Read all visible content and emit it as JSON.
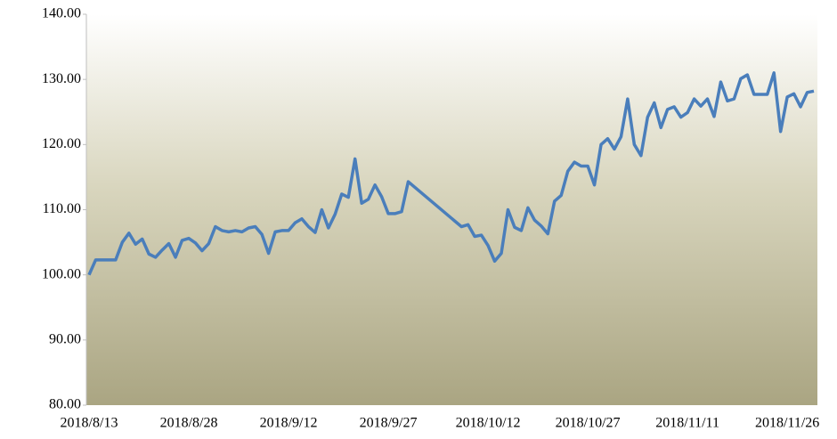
{
  "chart_data": {
    "type": "line",
    "x": [
      "2018/8/13",
      "2018/8/14",
      "2018/8/15",
      "2018/8/16",
      "2018/8/17",
      "2018/8/18",
      "2018/8/19",
      "2018/8/20",
      "2018/8/21",
      "2018/8/22",
      "2018/8/23",
      "2018/8/24",
      "2018/8/25",
      "2018/8/26",
      "2018/8/27",
      "2018/8/28",
      "2018/8/29",
      "2018/8/30",
      "2018/8/31",
      "2018/9/1",
      "2018/9/2",
      "2018/9/3",
      "2018/9/4",
      "2018/9/5",
      "2018/9/6",
      "2018/9/7",
      "2018/9/8",
      "2018/9/9",
      "2018/9/10",
      "2018/9/11",
      "2018/9/12",
      "2018/9/13",
      "2018/9/14",
      "2018/9/15",
      "2018/9/16",
      "2018/9/17",
      "2018/9/18",
      "2018/9/19",
      "2018/9/20",
      "2018/9/21",
      "2018/9/22",
      "2018/9/23",
      "2018/9/24",
      "2018/9/25",
      "2018/9/26",
      "2018/9/27",
      "2018/9/28",
      "2018/9/29",
      "2018/9/30",
      "2018/10/8",
      "2018/10/9",
      "2018/10/10",
      "2018/10/11",
      "2018/10/12",
      "2018/10/13",
      "2018/10/14",
      "2018/10/15",
      "2018/10/16",
      "2018/10/17",
      "2018/10/18",
      "2018/10/19",
      "2018/10/20",
      "2018/10/21",
      "2018/10/22",
      "2018/10/23",
      "2018/10/24",
      "2018/10/25",
      "2018/10/26",
      "2018/10/27",
      "2018/10/28",
      "2018/10/29",
      "2018/10/30",
      "2018/10/31",
      "2018/11/1",
      "2018/11/2",
      "2018/11/3",
      "2018/11/4",
      "2018/11/5",
      "2018/11/6",
      "2018/11/7",
      "2018/11/8",
      "2018/11/9",
      "2018/11/10",
      "2018/11/11",
      "2018/11/12",
      "2018/11/13",
      "2018/11/14",
      "2018/11/15",
      "2018/11/16",
      "2018/11/17",
      "2018/11/18",
      "2018/11/19",
      "2018/11/20",
      "2018/11/21",
      "2018/11/22",
      "2018/11/23",
      "2018/11/24",
      "2018/11/25",
      "2018/11/26",
      "2018/11/27",
      "2018/11/28",
      "2018/11/29",
      "2018/11/30"
    ],
    "series": [
      {
        "color": "#4a7ebb",
        "values": [
          100.0,
          102.3,
          102.3,
          102.3,
          102.3,
          105.0,
          106.4,
          104.7,
          105.5,
          103.2,
          102.7,
          103.8,
          104.8,
          102.7,
          105.3,
          105.6,
          104.9,
          103.7,
          104.8,
          107.4,
          106.8,
          106.6,
          106.8,
          106.6,
          107.2,
          107.4,
          106.2,
          103.3,
          106.6,
          106.8,
          106.8,
          108.0,
          108.6,
          107.4,
          106.5,
          110.0,
          107.2,
          109.3,
          112.4,
          111.9,
          117.8,
          111.0,
          111.6,
          113.8,
          112.0,
          109.4,
          109.4,
          109.7,
          114.3,
          107.4,
          107.7,
          105.9,
          106.1,
          104.5,
          102.1,
          103.3,
          110.0,
          107.3,
          106.8,
          110.3,
          108.4,
          107.5,
          106.3,
          111.3,
          112.2,
          115.9,
          117.3,
          116.7,
          116.7,
          113.8,
          120.0,
          120.9,
          119.3,
          121.2,
          127.0,
          120.0,
          118.3,
          124.2,
          126.4,
          122.6,
          125.4,
          125.8,
          124.2,
          124.9,
          127.0,
          125.9,
          127.0,
          124.3,
          129.6,
          126.7,
          127.0,
          130.1,
          130.7,
          127.7,
          127.7,
          127.7,
          131.0,
          122.0,
          127.3,
          127.8,
          125.8,
          128.0,
          128.2
        ]
      }
    ],
    "xlim": [
      "2018/8/13",
      "2018/11/30"
    ],
    "xticks": [
      "2018/8/13",
      "2018/8/28",
      "2018/9/12",
      "2018/9/27",
      "2018/10/12",
      "2018/10/27",
      "2018/11/11",
      "2018/11/26"
    ],
    "ylim": [
      80,
      140
    ],
    "yticks": [
      {
        "value": 80,
        "label": "80.00"
      },
      {
        "value": 90,
        "label": "90.00"
      },
      {
        "value": 100,
        "label": "100.00"
      },
      {
        "value": 110,
        "label": "110.00"
      },
      {
        "value": 120,
        "label": "120.00"
      },
      {
        "value": 130,
        "label": "130.00"
      },
      {
        "value": 140,
        "label": "140.00"
      }
    ]
  }
}
